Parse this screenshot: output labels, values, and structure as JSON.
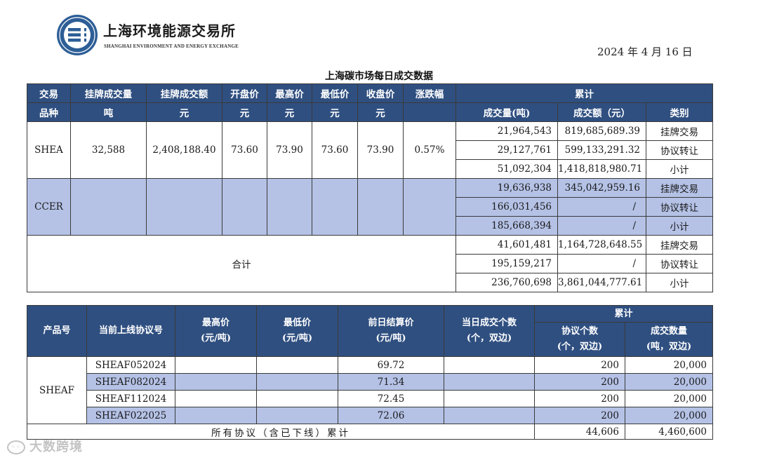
{
  "header": {
    "org_name_cn": "上海环境能源交易所",
    "org_name_en": "SHANGHAI ENVIRONMENT AND ENERGY EXCHANGE",
    "date": "2024 年 4 月 16 日",
    "title": "上海碳市场每日成交数据",
    "logo_icon": "exchange-logo-icon",
    "colors": {
      "header_bg": "#2f4f80",
      "shade": "#b5c2e6"
    }
  },
  "daily_table": {
    "headers": {
      "col_product_1": "交易",
      "col_product_2": "品种",
      "listed_volume": "挂牌成交量",
      "listed_volume_unit": "吨",
      "listed_amount": "挂牌成交额",
      "listed_amount_unit": "元",
      "open": "开盘价",
      "open_unit": "元",
      "high": "最高价",
      "high_unit": "元",
      "low": "最低价",
      "low_unit": "元",
      "close": "收盘价",
      "close_unit": "元",
      "change": "涨跌幅",
      "cumulative": "累计",
      "cum_volume": "成交量(吨)",
      "cum_amount": "成交额（元）",
      "category": "类别"
    },
    "shea": {
      "name": "SHEA",
      "listed_volume": "32,588",
      "listed_amount": "2,408,188.40",
      "open": "73.60",
      "high": "73.90",
      "low": "73.60",
      "close": "73.90",
      "change": "0.57%",
      "rows": [
        {
          "volume": "21,964,543",
          "amount": "819,685,689.39",
          "category": "挂牌交易"
        },
        {
          "volume": "29,127,761",
          "amount": "599,133,291.32",
          "category": "协议转让"
        },
        {
          "volume": "51,092,304",
          "amount": "1,418,818,980.71",
          "category": "小计"
        }
      ]
    },
    "ccer": {
      "name": "CCER",
      "rows": [
        {
          "volume": "19,636,938",
          "amount": "345,042,959.16",
          "category": "挂牌交易"
        },
        {
          "volume": "166,031,456",
          "amount": "/",
          "category": "协议转让"
        },
        {
          "volume": "185,668,394",
          "amount": "/",
          "category": "小计"
        }
      ]
    },
    "total": {
      "label": "合计",
      "rows": [
        {
          "volume": "41,601,481",
          "amount": "1,164,728,648.55",
          "category": "挂牌交易"
        },
        {
          "volume": "195,159,217",
          "amount": "/",
          "category": "协议转让"
        },
        {
          "volume": "236,760,698",
          "amount": "3,861,044,777.61",
          "category": "小计"
        }
      ]
    }
  },
  "forward_table": {
    "headers": {
      "product": "产品号",
      "contract": "当前上线协议号",
      "high": "最高价",
      "high_unit": "(元/吨)",
      "low": "最低价",
      "low_unit": "(元/吨)",
      "settle": "前日结算价",
      "settle_unit": "(元/吨)",
      "daily_count": "当日成交个数",
      "daily_count_unit": "(个，双边)",
      "cumulative": "累计",
      "cum_count": "协议个数",
      "cum_count_unit": "(个，双边)",
      "cum_volume": "成交数量",
      "cum_volume_unit": "(吨，双边)"
    },
    "product": "SHEAF",
    "rows": [
      {
        "contract": "SHEAF052024",
        "high": "",
        "low": "",
        "settle": "69.72",
        "daily_count": "",
        "cum_count": "200",
        "cum_volume": "20,000"
      },
      {
        "contract": "SHEAF082024",
        "high": "",
        "low": "",
        "settle": "71.34",
        "daily_count": "",
        "cum_count": "200",
        "cum_volume": "20,000"
      },
      {
        "contract": "SHEAF112024",
        "high": "",
        "low": "",
        "settle": "72.45",
        "daily_count": "",
        "cum_count": "200",
        "cum_volume": "20,000"
      },
      {
        "contract": "SHEAF022025",
        "high": "",
        "low": "",
        "settle": "72.06",
        "daily_count": "",
        "cum_count": "200",
        "cum_volume": "20,000"
      }
    ],
    "total": {
      "label": "所有协议（含已下线）累计",
      "cum_count": "44,606",
      "cum_volume": "4,460,600"
    }
  },
  "watermark": {
    "text": "大数跨境",
    "icon": "watermark-logo-icon"
  }
}
